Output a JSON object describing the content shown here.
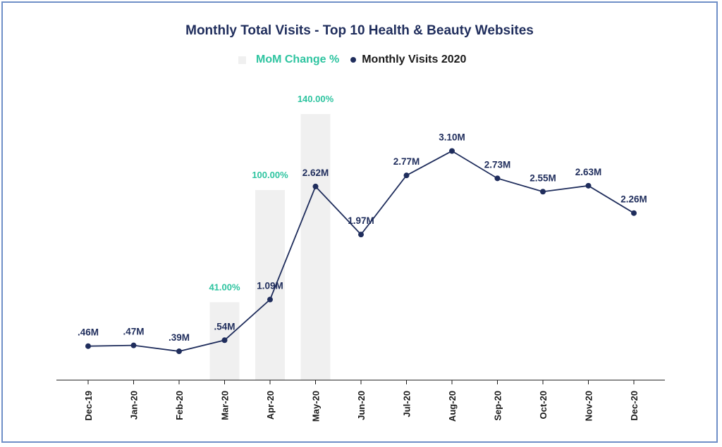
{
  "chart_data": {
    "type": "bar",
    "title": "Monthly Total Visits - Top 10 Health & Beauty Websites",
    "categories": [
      "Dec-19",
      "Jan-20",
      "Feb-20",
      "Mar-20",
      "Apr-20",
      "May-20",
      "Jun-20",
      "Jul-20",
      "Aug-20",
      "Sep-20",
      "Oct-20",
      "Nov-20",
      "Dec-20"
    ],
    "series": [
      {
        "name": "MoM Change %",
        "type": "bar",
        "color": "#f0f0f0",
        "label_color": "#2ec4a0",
        "values": [
          null,
          null,
          null,
          41,
          100,
          140,
          null,
          null,
          null,
          null,
          null,
          null,
          null
        ],
        "labels": [
          "",
          "",
          "",
          "41.00%",
          "100.00%",
          "140.00%",
          "",
          "",
          "",
          "",
          "",
          "",
          ""
        ]
      },
      {
        "name": "Monthly Visits 2020",
        "type": "line",
        "color": "#1f2d5c",
        "values": [
          0.46,
          0.47,
          0.39,
          0.54,
          1.09,
          2.62,
          1.97,
          2.77,
          3.1,
          2.73,
          2.55,
          2.63,
          2.26
        ],
        "labels": [
          ".46M",
          ".47M",
          ".39M",
          ".54M",
          "1.09M",
          "2.62M",
          "1.97M",
          "2.77M",
          "3.10M",
          "2.73M",
          "2.55M",
          "2.63M",
          "2.26M"
        ]
      }
    ],
    "legend": "top-center",
    "grid": false
  }
}
